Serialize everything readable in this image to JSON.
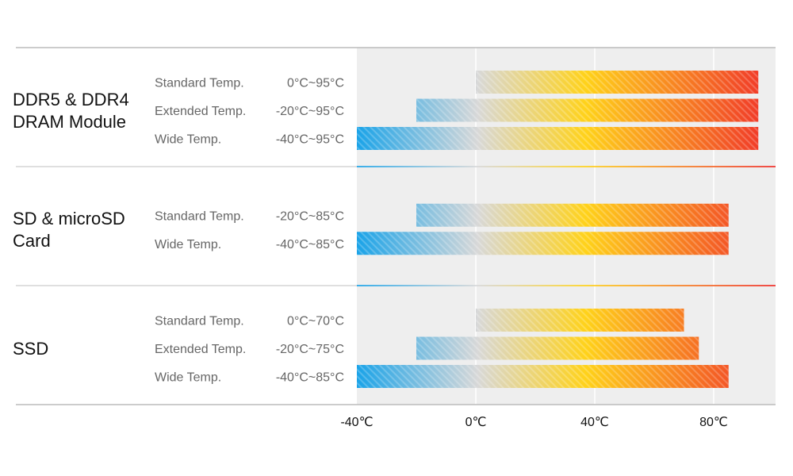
{
  "chart_data": {
    "type": "bar",
    "orientation": "horizontal",
    "subtype": "floating-range",
    "xlim": [
      -40,
      100
    ],
    "x_ticks": [
      -40,
      0,
      40,
      80
    ],
    "x_tick_labels": [
      "-40℃",
      "0℃",
      "40℃",
      "80℃"
    ],
    "grid": "vertical",
    "groups": [
      {
        "label_lines": [
          "DDR5 & DDR4",
          "DRAM Module"
        ],
        "rows": [
          {
            "label": "Standard Temp.",
            "range_label": "0°C~95°C",
            "min": 0,
            "max": 95
          },
          {
            "label": "Extended Temp.",
            "range_label": "-20°C~95°C",
            "min": -20,
            "max": 95
          },
          {
            "label": "Wide Temp.",
            "range_label": "-40°C~95°C",
            "min": -40,
            "max": 95
          }
        ]
      },
      {
        "label_lines": [
          "SD & microSD",
          "Card"
        ],
        "rows": [
          {
            "label": "Standard Temp.",
            "range_label": "-20°C~85°C",
            "min": -20,
            "max": 85
          },
          {
            "label": "Wide Temp.",
            "range_label": "-40°C~85°C",
            "min": -40,
            "max": 85
          }
        ]
      },
      {
        "label_lines": [
          "SSD"
        ],
        "rows": [
          {
            "label": "Standard Temp.",
            "range_label": "0°C~70°C",
            "min": 0,
            "max": 70
          },
          {
            "label": "Extended Temp.",
            "range_label": "-20°C~75°C",
            "min": -20,
            "max": 75
          },
          {
            "label": "Wide Temp.",
            "range_label": "-40°C~85°C",
            "min": -40,
            "max": 85
          }
        ]
      }
    ],
    "colors": {
      "cold": "#1aa3e8",
      "neutral": "#d8d8d8",
      "warm": "#ffd21a",
      "hot": "#f0302a",
      "plot_background": "#eeeeee",
      "label_text": "#666666",
      "group_text": "#111111"
    }
  }
}
